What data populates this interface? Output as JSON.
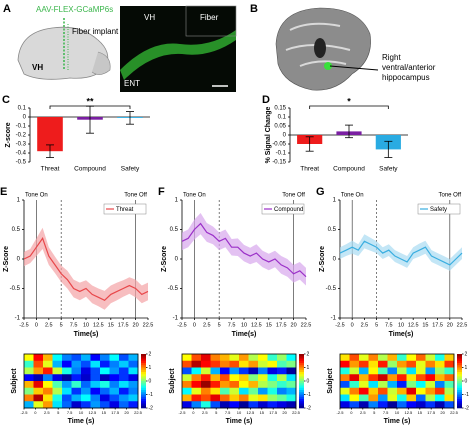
{
  "panel_a": {
    "panel": "A",
    "virus": "AAV-FLEX-GCaMP6s",
    "implant": "Fiber implant",
    "region": "VH",
    "micro_labels": [
      "VH",
      "Fiber",
      "ENT"
    ]
  },
  "panel_b": {
    "panel": "B",
    "label_lines": [
      "Right",
      "ventral/anterior",
      "hippocampus"
    ]
  },
  "chart_data": [
    {
      "type": "bar",
      "panel": "C",
      "ylabel": "Z-score",
      "categories": [
        "Threat",
        "Compound",
        "Safety"
      ],
      "values": [
        -0.38,
        -0.03,
        -0.01
      ],
      "errors": [
        0.07,
        0.15,
        0.07
      ],
      "colors": [
        "#ee1c1c",
        "#7a1fa2",
        "#29abe2"
      ],
      "ylim": [
        -0.5,
        0.1
      ],
      "yticks": [
        -0.5,
        -0.4,
        -0.3,
        -0.2,
        -0.1,
        0,
        0.1
      ],
      "significance_label": "**"
    },
    {
      "type": "bar",
      "panel": "D",
      "ylabel": "% Signal Change",
      "categories": [
        "Threat",
        "Compound",
        "Safety"
      ],
      "values": [
        -0.05,
        0.02,
        -0.08
      ],
      "errors": [
        0.04,
        0.035,
        0.045
      ],
      "colors": [
        "#ee1c1c",
        "#7a1fa2",
        "#29abe2"
      ],
      "ylim": [
        -0.15,
        0.15
      ],
      "yticks": [
        -0.15,
        -0.1,
        -0.05,
        0,
        0.05,
        0.1,
        0.15
      ],
      "significance_label": "*"
    },
    {
      "type": "line",
      "panel": "E",
      "xlabel": "Time(s)",
      "ylabel": "Z-Score",
      "xlim": [
        -2.5,
        22.5
      ],
      "xticks": [
        -2.5,
        0,
        2.5,
        5,
        7.5,
        10,
        12.5,
        15,
        17.5,
        20,
        22.5
      ],
      "ylim": [
        -1,
        1
      ],
      "yticks": [
        -1,
        -0.5,
        0,
        0.5,
        1
      ],
      "events": [
        {
          "x": 0,
          "label": "Tone On"
        },
        {
          "x": 5,
          "style": "dashed"
        },
        {
          "x": 20,
          "label": "Tone Off"
        }
      ],
      "x": [
        -2.5,
        -1.25,
        0,
        1.25,
        2.5,
        3.75,
        5,
        6.25,
        7.5,
        8.75,
        10,
        11.25,
        12.5,
        13.75,
        15,
        16.25,
        17.5,
        18.75,
        20,
        21.25,
        22.5
      ],
      "series": [
        {
          "name": "Threat",
          "color": "#e8474a",
          "band_color": "#f4a3a5",
          "values": [
            0.0,
            0.05,
            0.2,
            0.35,
            0.05,
            -0.1,
            -0.25,
            -0.35,
            -0.5,
            -0.55,
            -0.5,
            -0.6,
            -0.65,
            -0.7,
            -0.6,
            -0.55,
            -0.5,
            -0.45,
            -0.5,
            -0.6,
            -0.55
          ],
          "errors": [
            0.12,
            0.12,
            0.15,
            0.18,
            0.15,
            0.14,
            0.14,
            0.15,
            0.15,
            0.15,
            0.14,
            0.15,
            0.15,
            0.16,
            0.15,
            0.15,
            0.14,
            0.14,
            0.15,
            0.15,
            0.15
          ]
        }
      ]
    },
    {
      "type": "line",
      "panel": "F",
      "xlabel": "Time(s)",
      "ylabel": "Z-Score",
      "xlim": [
        -2.5,
        22.5
      ],
      "xticks": [
        -2.5,
        0,
        2.5,
        5,
        7.5,
        10,
        12.5,
        15,
        17.5,
        20,
        22.5
      ],
      "ylim": [
        -1,
        1
      ],
      "yticks": [
        -1,
        -0.5,
        0,
        0.5,
        1
      ],
      "events": [
        {
          "x": 0,
          "label": "Tone On"
        },
        {
          "x": 5,
          "style": "dashed"
        },
        {
          "x": 20,
          "label": "Tone Off"
        }
      ],
      "x": [
        -2.5,
        -1.25,
        0,
        1.25,
        2.5,
        3.75,
        5,
        6.25,
        7.5,
        8.75,
        10,
        11.25,
        12.5,
        13.75,
        15,
        16.25,
        17.5,
        18.75,
        20,
        21.25,
        22.5
      ],
      "series": [
        {
          "name": "Compound",
          "color": "#9b30c8",
          "band_color": "#d7a6ec",
          "values": [
            0.3,
            0.35,
            0.5,
            0.6,
            0.45,
            0.4,
            0.3,
            0.35,
            0.2,
            0.2,
            0.1,
            0.05,
            0.1,
            0.0,
            -0.05,
            0.0,
            -0.1,
            -0.15,
            -0.25,
            -0.2,
            -0.3
          ],
          "errors": [
            0.15,
            0.15,
            0.17,
            0.18,
            0.16,
            0.15,
            0.15,
            0.15,
            0.14,
            0.15,
            0.14,
            0.14,
            0.15,
            0.14,
            0.14,
            0.14,
            0.15,
            0.15,
            0.15,
            0.15,
            0.15
          ]
        }
      ]
    },
    {
      "type": "line",
      "panel": "G",
      "xlabel": "Time(s)",
      "ylabel": "Z-Score",
      "xlim": [
        -2.5,
        22.5
      ],
      "xticks": [
        -2.5,
        0,
        2.5,
        5,
        7.5,
        10,
        12.5,
        15,
        17.5,
        20,
        22.5
      ],
      "ylim": [
        -1,
        1
      ],
      "yticks": [
        -1,
        -0.5,
        0,
        0.5,
        1
      ],
      "events": [
        {
          "x": 0,
          "label": "Tone On"
        },
        {
          "x": 5,
          "style": "dashed"
        },
        {
          "x": 20,
          "label": "Tone Off"
        }
      ],
      "x": [
        -2.5,
        -1.25,
        0,
        1.25,
        2.5,
        3.75,
        5,
        6.25,
        7.5,
        8.75,
        10,
        11.25,
        12.5,
        13.75,
        15,
        16.25,
        17.5,
        18.75,
        20,
        21.25,
        22.5
      ],
      "series": [
        {
          "name": "Safety",
          "color": "#3aaee0",
          "band_color": "#a9dcf2",
          "values": [
            0.1,
            0.15,
            0.2,
            0.15,
            0.3,
            0.25,
            0.2,
            0.1,
            0.15,
            0.05,
            0.0,
            -0.05,
            0.1,
            0.15,
            0.2,
            0.05,
            0.0,
            -0.05,
            -0.1,
            0.0,
            0.1
          ],
          "errors": [
            0.1,
            0.1,
            0.11,
            0.1,
            0.12,
            0.11,
            0.1,
            0.1,
            0.1,
            0.1,
            0.1,
            0.1,
            0.1,
            0.11,
            0.11,
            0.1,
            0.1,
            0.1,
            0.1,
            0.1,
            0.1
          ]
        }
      ]
    },
    {
      "type": "heatmap",
      "xlabel": "Time (s)",
      "ylabel": "Subject",
      "xlim": [
        -2.5,
        22.5
      ],
      "xticks": [
        -2.5,
        0,
        2.5,
        5,
        7.5,
        10,
        12.5,
        15,
        17.5,
        20,
        22.5
      ],
      "zlim": [
        -2,
        2
      ],
      "zticks": [
        2,
        1,
        0,
        -1,
        -2
      ],
      "values": [
        [
          0.5,
          1.5,
          0.8,
          -0.5,
          -1.0,
          -1.2,
          -0.8,
          -1.5,
          -1.0,
          -0.5,
          -1.2,
          -0.8
        ],
        [
          -0.3,
          1.2,
          0.4,
          -0.8,
          -1.5,
          -0.9,
          -1.2,
          -0.6,
          -1.4,
          -1.0,
          -0.7,
          -1.1
        ],
        [
          0.2,
          0.9,
          1.4,
          0.3,
          -0.4,
          -1.0,
          -1.6,
          -1.2,
          -0.5,
          -0.9,
          -1.3,
          -0.6
        ],
        [
          -1.5,
          -1.8,
          -1.0,
          -1.6,
          -1.9,
          -1.4,
          -1.7,
          -1.2,
          -1.8,
          -1.5,
          -1.3,
          -1.6
        ],
        [
          0.8,
          1.6,
          0.5,
          -0.2,
          -0.9,
          -0.3,
          -1.1,
          -0.7,
          -0.4,
          -1.0,
          -0.6,
          -0.9
        ],
        [
          0.0,
          0.7,
          1.0,
          0.2,
          -0.6,
          -1.3,
          -0.9,
          -1.5,
          -1.1,
          -0.8,
          -1.4,
          -1.0
        ],
        [
          1.0,
          1.8,
          0.6,
          -0.4,
          -1.2,
          -0.8,
          -0.5,
          -1.0,
          -1.6,
          -1.2,
          -0.9,
          -0.7
        ],
        [
          -0.8,
          0.4,
          0.9,
          -0.6,
          -1.1,
          -1.7,
          -1.3,
          -0.9,
          -1.2,
          -1.6,
          -1.1,
          -1.4
        ]
      ]
    },
    {
      "type": "heatmap",
      "xlabel": "Time (s)",
      "ylabel": "Subject",
      "xlim": [
        -2.5,
        22.5
      ],
      "xticks": [
        -2.5,
        0,
        2.5,
        5,
        7.5,
        10,
        12.5,
        15,
        17.5,
        20,
        22.5
      ],
      "zlim": [
        -2,
        2
      ],
      "zticks": [
        2,
        1,
        0,
        -1,
        -2
      ],
      "values": [
        [
          0.5,
          1.2,
          1.6,
          1.0,
          0.8,
          0.4,
          0.9,
          0.2,
          0.5,
          -0.3,
          0.1,
          -0.5
        ],
        [
          1.2,
          1.8,
          1.5,
          1.3,
          1.0,
          1.2,
          0.6,
          0.9,
          0.3,
          0.5,
          -0.2,
          0.0
        ],
        [
          -1.2,
          -0.5,
          0.3,
          -0.8,
          -1.5,
          -0.9,
          -1.3,
          -1.8,
          -1.0,
          -1.6,
          -1.4,
          -1.9
        ],
        [
          0.3,
          1.0,
          1.4,
          0.8,
          1.2,
          0.5,
          0.7,
          0.0,
          0.4,
          -0.4,
          0.2,
          -0.6
        ],
        [
          1.0,
          1.5,
          1.9,
          1.4,
          0.9,
          1.1,
          0.5,
          0.8,
          0.2,
          0.0,
          -0.3,
          -0.1
        ],
        [
          -0.5,
          0.4,
          1.0,
          0.6,
          -0.2,
          0.3,
          -0.6,
          -0.1,
          -0.9,
          -0.4,
          -1.0,
          -0.8
        ],
        [
          0.8,
          1.4,
          1.2,
          1.6,
          1.1,
          0.7,
          1.0,
          0.4,
          0.6,
          0.1,
          -0.1,
          -0.4
        ],
        [
          -1.6,
          -1.0,
          -0.4,
          -1.2,
          -1.8,
          -1.5,
          -1.9,
          -1.3,
          -1.7,
          -1.4,
          -1.6,
          -1.8
        ]
      ]
    },
    {
      "type": "heatmap",
      "xlabel": "Time (s)",
      "ylabel": "Subject",
      "xlim": [
        -2.5,
        22.5
      ],
      "xticks": [
        -2.5,
        0,
        2.5,
        5,
        7.5,
        10,
        12.5,
        15,
        17.5,
        20,
        22.5
      ],
      "zlim": [
        -2,
        2
      ],
      "zticks": [
        2,
        1,
        0,
        -1,
        -2
      ],
      "values": [
        [
          0.6,
          1.2,
          0.4,
          1.0,
          0.2,
          0.8,
          -0.3,
          0.5,
          1.1,
          0.3,
          -0.4,
          0.7
        ],
        [
          1.5,
          0.9,
          1.3,
          0.6,
          1.4,
          0.1,
          0.9,
          1.2,
          0.4,
          1.0,
          0.6,
          1.3
        ],
        [
          -0.4,
          0.3,
          -0.8,
          0.5,
          -0.2,
          -1.0,
          0.2,
          -0.6,
          0.4,
          -0.9,
          0.1,
          -0.3
        ],
        [
          1.0,
          1.6,
          0.8,
          1.3,
          1.7,
          0.9,
          1.4,
          0.6,
          1.2,
          1.5,
          0.8,
          1.1
        ],
        [
          -1.2,
          -0.3,
          0.4,
          -0.6,
          0.2,
          -0.8,
          -1.4,
          0.0,
          -0.5,
          0.3,
          -1.0,
          -0.2
        ],
        [
          0.4,
          1.0,
          1.5,
          0.7,
          1.2,
          0.3,
          0.8,
          1.6,
          0.5,
          0.9,
          1.3,
          0.2
        ],
        [
          -0.6,
          0.5,
          -0.2,
          0.9,
          -0.9,
          0.4,
          -0.4,
          0.7,
          -1.1,
          0.2,
          -0.5,
          0.6
        ],
        [
          -1.6,
          -1.2,
          -1.8,
          -1.0,
          -1.4,
          -1.9,
          -1.1,
          -1.5,
          -1.7,
          -1.3,
          -1.8,
          -1.2
        ]
      ]
    }
  ]
}
